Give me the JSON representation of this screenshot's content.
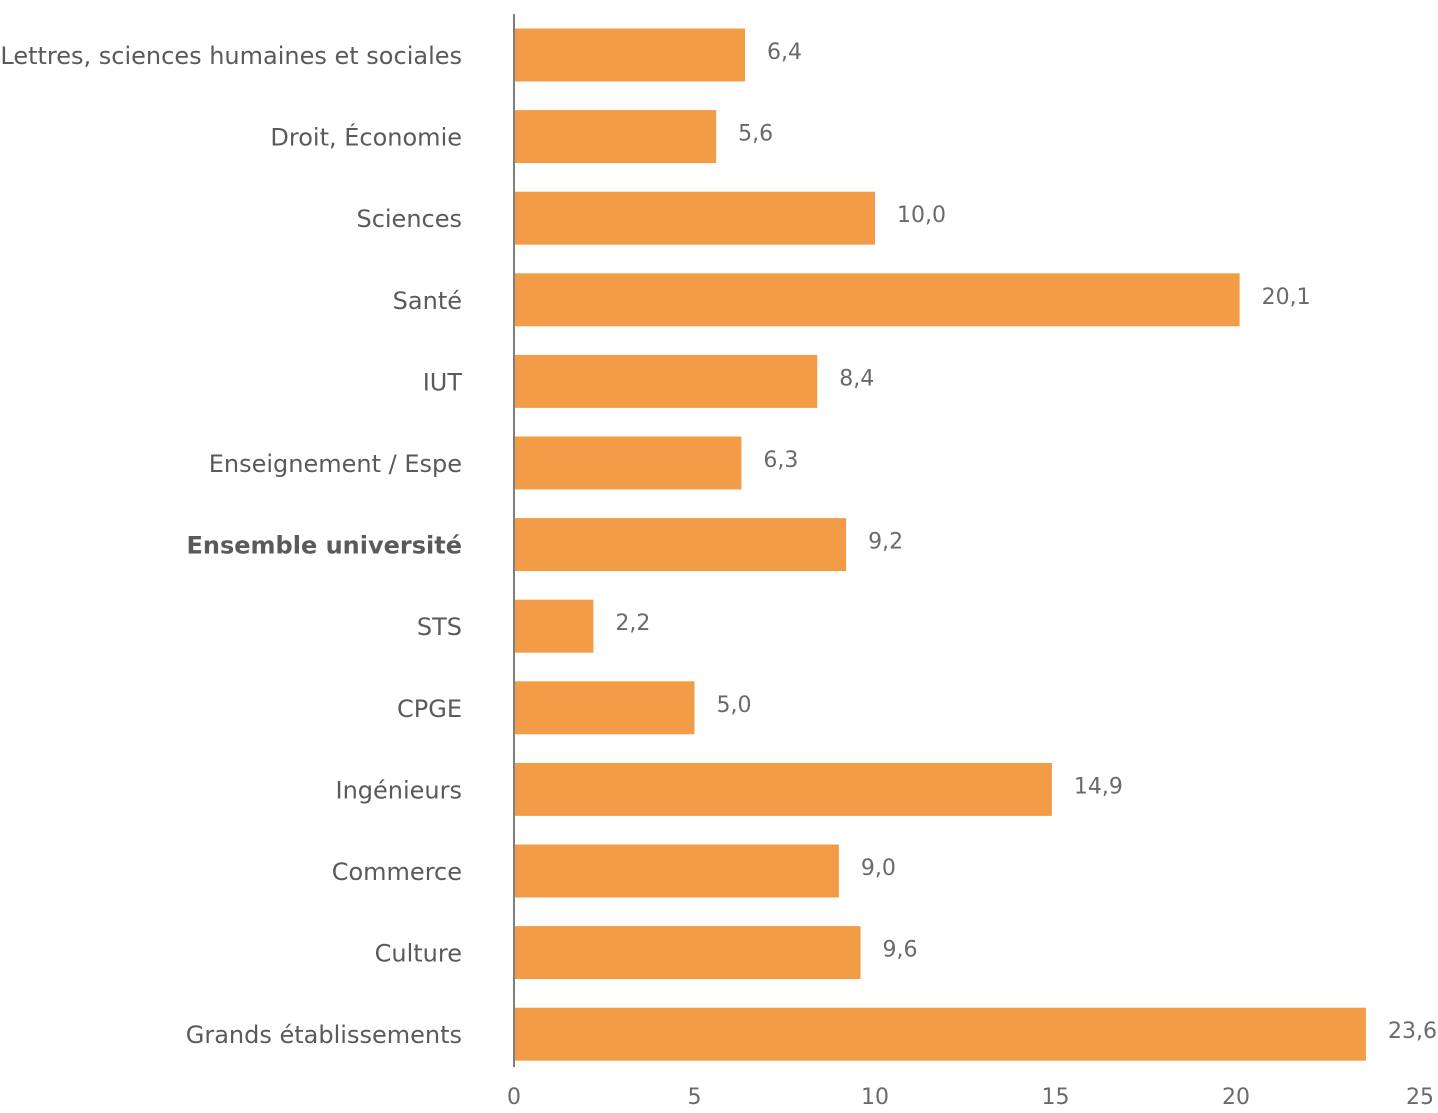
{
  "chart_data": {
    "type": "bar",
    "orientation": "horizontal",
    "categories": [
      "Lettres, sciences humaines et sociales",
      "Droit, Économie",
      "Sciences",
      "Santé",
      "IUT",
      "Enseignement / Espe",
      "Ensemble université",
      "STS",
      "CPGE",
      "Ingénieurs",
      "Commerce",
      "Culture",
      "Grands établissements"
    ],
    "values": [
      6.4,
      5.6,
      10.0,
      20.1,
      8.4,
      6.3,
      9.2,
      2.2,
      5.0,
      14.9,
      9.0,
      9.6,
      23.6
    ],
    "value_labels": [
      "6,4",
      "5,6",
      "10,0",
      "20,1",
      "8,4",
      "6,3",
      "9,2",
      "2,2",
      "5,0",
      "14,9",
      "9,0",
      "9,6",
      "23,6"
    ],
    "highlighted_category": "Ensemble université",
    "xlim": [
      0,
      25
    ],
    "x_ticks": [
      0,
      5,
      10,
      15,
      20,
      25
    ],
    "x_tick_labels": [
      "0",
      "5",
      "10",
      "15",
      "20",
      "25"
    ],
    "grid": false,
    "legend": "none",
    "bar_color": "#f39c47",
    "axis_color": "#7f7f7f"
  }
}
